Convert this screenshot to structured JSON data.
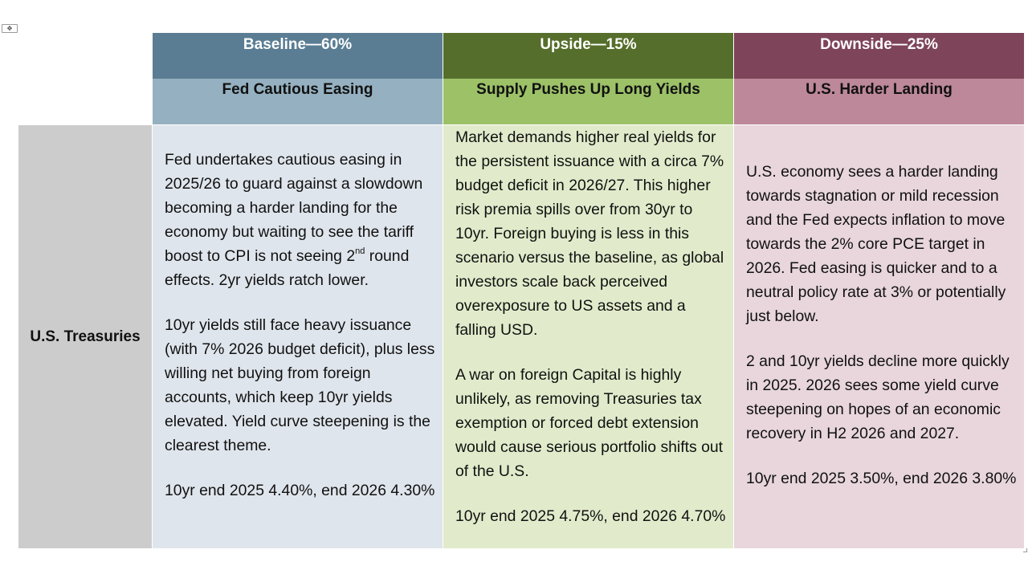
{
  "colors": {
    "baseline_header": "#5a7d93",
    "baseline_subheader": "#95b1c1",
    "baseline_body": "#dfe5ec",
    "upside_header": "#566e2b",
    "upside_subheader": "#9cc167",
    "upside_body": "#e1ebcb",
    "downside_header": "#7e4459",
    "downside_subheader": "#bd8899",
    "downside_body": "#e8d6dc",
    "row_label_bg": "#cccccc"
  },
  "row_label": "U.S. Treasuries",
  "scenarios": [
    {
      "title": "Baseline—60%",
      "subtitle": "Fed Cautious Easing",
      "para1_before": "Fed undertakes cautious easing in 2025/26 to guard against a slowdown becoming a harder landing for the economy but waiting to see the tariff boost to CPI is not seeing 2",
      "para1_sup": "nd",
      "para1_after": " round effects.  2yr yields ratch lower.",
      "para2": "10yr yields still face heavy issuance (with 7% 2026 budget deficit), plus less willing net buying from foreign accounts, which keep 10yr yields elevated.  Yield curve steepening is the clearest theme.",
      "forecast": "10yr end 2025 4.40%, end 2026 4.30%"
    },
    {
      "title": "Upside—15%",
      "subtitle": "Supply Pushes Up Long Yields",
      "para1": "Market demands higher real yields for the persistent issuance with a circa 7% budget deficit in 2026/27. This higher risk premia spills over from 30yr to 10yr.  Foreign buying is less in this scenario versus the baseline, as global investors scale back perceived overexposure to US assets and a falling USD.",
      "para2": "A war on foreign Capital is highly unlikely, as removing Treasuries tax exemption or forced debt extension would cause serious portfolio shifts out of the U.S.",
      "forecast": "10yr end 2025 4.75%, end 2026 4.70%"
    },
    {
      "title": "Downside—25%",
      "subtitle": "U.S. Harder Landing",
      "para1": "U.S. economy sees a harder landing towards stagnation or mild recession and the Fed expects inflation to move towards the 2% core PCE target in 2026.  Fed easing is quicker and to a neutral policy rate at 3% or potentially just below.",
      "para2": "2 and 10yr yields decline more quickly in 2025.  2026 sees some yield curve steepening on hopes of an economic recovery in H2 2026 and 2027.",
      "forecast": "10yr end 2025 3.50%, end 2026 3.80%"
    }
  ]
}
